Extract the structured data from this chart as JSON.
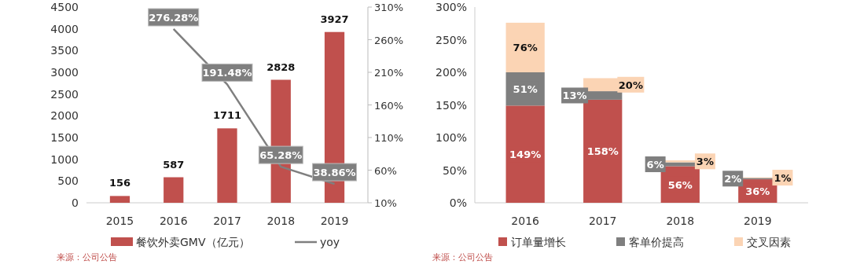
{
  "chart_data": [
    {
      "type": "bar",
      "categories": [
        "2015",
        "2016",
        "2017",
        "2018",
        "2019"
      ],
      "series": [
        {
          "name": "餐饮外卖GMV（亿元）",
          "color": "#c0504d",
          "values": [
            156,
            587,
            1711,
            2828,
            3927
          ],
          "value_labels": [
            "156",
            "587",
            "1711",
            "2828",
            "3927"
          ]
        },
        {
          "name": "yoy",
          "type": "line",
          "axis": "y2",
          "color": "#7f7f7f",
          "values": [
            null,
            276.28,
            191.48,
            65.28,
            38.86
          ],
          "value_labels": [
            null,
            "276.28%",
            "191.48%",
            "65.28%",
            "38.86%"
          ]
        }
      ],
      "ylim": [
        0,
        4500
      ],
      "yticks": [
        0,
        500,
        1000,
        1500,
        2000,
        2500,
        3000,
        3500,
        4000,
        4500
      ],
      "y2lim": [
        10,
        310
      ],
      "y2ticks": [
        {
          "value": 10,
          "label": "10%"
        },
        {
          "value": 60,
          "label": "60%"
        },
        {
          "value": 110,
          "label": "110%"
        },
        {
          "value": 160,
          "label": "160%"
        },
        {
          "value": 210,
          "label": "210%"
        },
        {
          "value": 260,
          "label": "260%"
        },
        {
          "value": 310,
          "label": "310%"
        }
      ],
      "legend": "bottom",
      "grid": false,
      "line_style": "solid",
      "annotations": [
        "来源：公司公告"
      ]
    },
    {
      "type": "bar",
      "stacked": true,
      "categories": [
        "2016",
        "2017",
        "2018",
        "2019"
      ],
      "series": [
        {
          "name": "订单量增长",
          "color": "#c0504d",
          "values": [
            149,
            158,
            56,
            36
          ],
          "value_labels": [
            "149%",
            "158%",
            "56%",
            "36%"
          ]
        },
        {
          "name": "客单价提高",
          "color": "#7f7f7f",
          "values": [
            51,
            13,
            6,
            2
          ],
          "value_labels": [
            "51%",
            "13%",
            "6%",
            "2%"
          ]
        },
        {
          "name": "交叉因素",
          "color": "#fbd4b4",
          "values": [
            76,
            20,
            3,
            1
          ],
          "value_labels": [
            "76%",
            "20%",
            "3%",
            "1%"
          ]
        }
      ],
      "ylim": [
        0,
        300
      ],
      "yticks": [
        {
          "value": 0,
          "label": "0%"
        },
        {
          "value": 50,
          "label": "50%"
        },
        {
          "value": 100,
          "label": "100%"
        },
        {
          "value": 150,
          "label": "150%"
        },
        {
          "value": 200,
          "label": "200%"
        },
        {
          "value": 250,
          "label": "250%"
        },
        {
          "value": 300,
          "label": "300%"
        }
      ],
      "legend": "bottom",
      "grid": false,
      "annotations": [
        "来源：公司公告"
      ]
    }
  ]
}
